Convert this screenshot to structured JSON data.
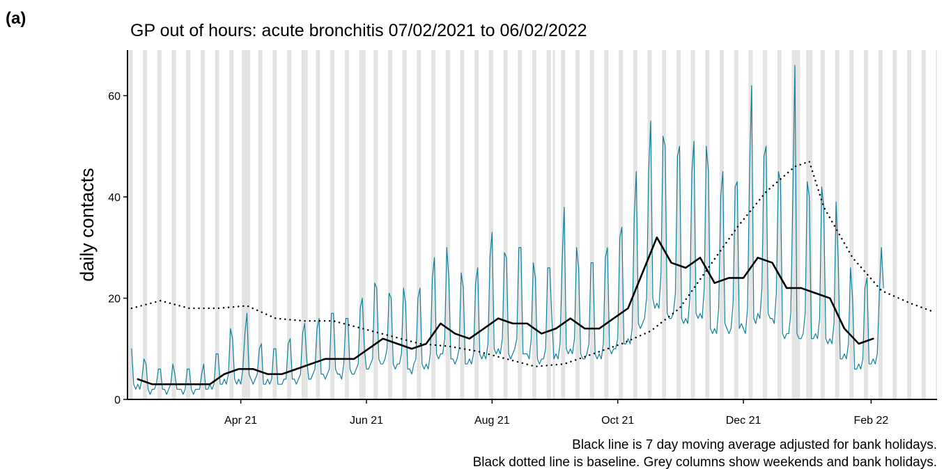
{
  "panel_label": "(a)",
  "chart_data": {
    "type": "line",
    "title": "GP out of hours: acute bronchitis 07/02/2021 to 06/02/2022",
    "y_label": "daily contacts",
    "notes": [
      "Black line is 7 day moving average adjusted for bank holidays.",
      "Black dotted line is baseline. Grey columns show weekends and bank holidays."
    ],
    "xlim": [
      -2,
      391
    ],
    "xticks": [
      {
        "value": 53,
        "label": "Apr 21"
      },
      {
        "value": 114,
        "label": "Jun 21"
      },
      {
        "value": 175,
        "label": "Aug 21"
      },
      {
        "value": 236,
        "label": "Oct 21"
      },
      {
        "value": 297,
        "label": "Dec 21"
      },
      {
        "value": 359,
        "label": "Feb 22"
      }
    ],
    "ylim": [
      0,
      69
    ],
    "yticks": [
      0,
      20,
      40,
      60
    ],
    "shade_weekends": true,
    "shade_color": "#e3e3e3",
    "bank_holidays": [
      54,
      57,
      85,
      113,
      205,
      323,
      324,
      330
    ],
    "series": [
      {
        "name": "daily contacts",
        "color": "#0f8199",
        "width": 1.2,
        "x": [
          0,
          1,
          2,
          3,
          4,
          5,
          6,
          7,
          8,
          9,
          10,
          11,
          12,
          13,
          14,
          15,
          16,
          17,
          18,
          19,
          20,
          21,
          22,
          23,
          24,
          25,
          26,
          27,
          28,
          29,
          30,
          31,
          32,
          33,
          34,
          35,
          36,
          37,
          38,
          39,
          40,
          41,
          42,
          43,
          44,
          45,
          46,
          47,
          48,
          49,
          50,
          51,
          52,
          53,
          54,
          55,
          56,
          57,
          58,
          59,
          60,
          61,
          62,
          63,
          64,
          65,
          66,
          67,
          68,
          69,
          70,
          71,
          72,
          73,
          74,
          75,
          76,
          77,
          78,
          79,
          80,
          81,
          82,
          83,
          84,
          85,
          86,
          87,
          88,
          89,
          90,
          91,
          92,
          93,
          94,
          95,
          96,
          97,
          98,
          99,
          100,
          101,
          102,
          103,
          104,
          105,
          106,
          107,
          108,
          109,
          110,
          111,
          112,
          113,
          114,
          115,
          116,
          117,
          118,
          119,
          120,
          121,
          122,
          123,
          124,
          125,
          126,
          127,
          128,
          129,
          130,
          131,
          132,
          133,
          134,
          135,
          136,
          137,
          138,
          139,
          140,
          141,
          142,
          143,
          144,
          145,
          146,
          147,
          148,
          149,
          150,
          151,
          152,
          153,
          154,
          155,
          156,
          157,
          158,
          159,
          160,
          161,
          162,
          163,
          164,
          165,
          166,
          167,
          168,
          169,
          170,
          171,
          172,
          173,
          174,
          175,
          176,
          177,
          178,
          179,
          180,
          181,
          182,
          183,
          184,
          185,
          186,
          187,
          188,
          189,
          190,
          191,
          192,
          193,
          194,
          195,
          196,
          197,
          198,
          199,
          200,
          201,
          202,
          203,
          204,
          205,
          206,
          207,
          208,
          209,
          210,
          211,
          212,
          213,
          214,
          215,
          216,
          217,
          218,
          219,
          220,
          221,
          222,
          223,
          224,
          225,
          226,
          227,
          228,
          229,
          230,
          231,
          232,
          233,
          234,
          235,
          236,
          237,
          238,
          239,
          240,
          241,
          242,
          243,
          244,
          245,
          246,
          247,
          248,
          249,
          250,
          251,
          252,
          253,
          254,
          255,
          256,
          257,
          258,
          259,
          260,
          261,
          262,
          263,
          264,
          265,
          266,
          267,
          268,
          269,
          270,
          271,
          272,
          273,
          274,
          275,
          276,
          277,
          278,
          279,
          280,
          281,
          282,
          283,
          284,
          285,
          286,
          287,
          288,
          289,
          290,
          291,
          292,
          293,
          294,
          295,
          296,
          297,
          298,
          299,
          300,
          301,
          302,
          303,
          304,
          305,
          306,
          307,
          308,
          309,
          310,
          311,
          312,
          313,
          314,
          315,
          316,
          317,
          318,
          319,
          320,
          321,
          322,
          323,
          324,
          325,
          326,
          327,
          328,
          329,
          330,
          331,
          332,
          333,
          334,
          335,
          336,
          337,
          338,
          339,
          340,
          341,
          342,
          343,
          344,
          345,
          346,
          347,
          348,
          349,
          350,
          351,
          352,
          353,
          354,
          355,
          356,
          357,
          358,
          359,
          360,
          361,
          362,
          363,
          364,
          365
        ],
        "values": [
          10,
          3,
          2,
          3,
          2,
          4,
          8,
          7,
          2,
          1,
          2,
          2,
          3,
          6,
          6,
          2,
          2,
          1,
          2,
          3,
          7,
          5,
          2,
          2,
          2,
          1,
          2,
          6,
          6,
          2,
          1,
          2,
          2,
          2,
          5,
          7,
          2,
          2,
          3,
          2,
          3,
          9,
          9,
          3,
          3,
          4,
          3,
          5,
          14,
          12,
          4,
          3,
          4,
          3,
          6,
          13,
          17,
          5,
          4,
          3,
          4,
          5,
          10,
          11,
          3,
          3,
          4,
          3,
          4,
          10,
          10,
          3,
          3,
          3,
          4,
          4,
          11,
          12,
          4,
          4,
          3,
          4,
          5,
          13,
          15,
          8,
          4,
          4,
          5,
          6,
          14,
          16,
          5,
          5,
          4,
          5,
          6,
          17,
          17,
          6,
          5,
          5,
          4,
          7,
          16,
          16,
          6,
          5,
          5,
          6,
          7,
          18,
          20,
          10,
          6,
          6,
          7,
          8,
          23,
          22,
          8,
          7,
          7,
          8,
          10,
          21,
          20,
          7,
          6,
          7,
          7,
          9,
          22,
          19,
          6,
          6,
          5,
          7,
          8,
          20,
          22,
          7,
          6,
          7,
          6,
          9,
          24,
          28,
          9,
          8,
          9,
          9,
          12,
          30,
          24,
          8,
          8,
          7,
          8,
          10,
          25,
          22,
          7,
          7,
          8,
          7,
          9,
          23,
          26,
          9,
          8,
          9,
          8,
          11,
          28,
          33,
          10,
          9,
          10,
          9,
          12,
          29,
          28,
          9,
          8,
          9,
          10,
          12,
          30,
          30,
          9,
          9,
          9,
          8,
          12,
          27,
          24,
          8,
          7,
          8,
          8,
          10,
          26,
          26,
          16,
          8,
          9,
          8,
          11,
          27,
          38,
          10,
          9,
          10,
          9,
          12,
          30,
          26,
          9,
          8,
          8,
          9,
          11,
          27,
          27,
          9,
          8,
          9,
          8,
          11,
          28,
          30,
          10,
          9,
          10,
          10,
          12,
          32,
          34,
          11,
          11,
          12,
          11,
          14,
          36,
          45,
          15,
          14,
          15,
          16,
          20,
          45,
          55,
          20,
          18,
          19,
          18,
          25,
          52,
          50,
          17,
          16,
          16,
          17,
          21,
          48,
          50,
          16,
          15,
          16,
          15,
          20,
          45,
          51,
          17,
          16,
          17,
          16,
          22,
          50,
          45,
          14,
          13,
          14,
          13,
          18,
          40,
          45,
          15,
          14,
          13,
          14,
          19,
          42,
          43,
          14,
          15,
          14,
          13,
          18,
          45,
          62,
          16,
          15,
          17,
          16,
          22,
          48,
          50,
          17,
          16,
          16,
          15,
          21,
          45,
          43,
          13,
          12,
          13,
          13,
          17,
          40,
          66,
          13,
          12,
          12,
          13,
          17,
          43,
          40,
          12,
          12,
          13,
          12,
          16,
          42,
          38,
          12,
          11,
          12,
          11,
          15,
          39,
          28,
          8,
          8,
          9,
          8,
          11,
          26,
          20,
          6,
          6,
          7,
          6,
          8,
          22,
          24,
          7,
          7,
          8,
          7,
          9,
          21,
          30,
          22
        ]
      },
      {
        "name": "7 day moving average",
        "color": "#000000",
        "width": 2.6,
        "x": [
          3,
          10,
          17,
          24,
          31,
          38,
          45,
          52,
          59,
          66,
          73,
          80,
          87,
          94,
          101,
          108,
          115,
          122,
          129,
          136,
          143,
          150,
          157,
          164,
          171,
          178,
          185,
          192,
          199,
          206,
          213,
          220,
          227,
          234,
          241,
          248,
          255,
          262,
          269,
          276,
          283,
          290,
          297,
          304,
          311,
          318,
          325,
          332,
          339,
          346,
          353,
          360
        ],
        "values": [
          4,
          3,
          3,
          3,
          3,
          3,
          5,
          6,
          6,
          5,
          5,
          6,
          7,
          8,
          8,
          8,
          10,
          12,
          11,
          10,
          11,
          15,
          13,
          12,
          14,
          16,
          15,
          15,
          13,
          14,
          16,
          14,
          14,
          16,
          18,
          25,
          32,
          27,
          26,
          28,
          23,
          24,
          24,
          28,
          27,
          22,
          22,
          21,
          20,
          14,
          11,
          12
        ]
      },
      {
        "name": "baseline",
        "color": "#000000",
        "width": 2.4,
        "dash": true,
        "x": [
          0,
          14,
          28,
          42,
          56,
          70,
          84,
          98,
          112,
          126,
          140,
          154,
          168,
          182,
          196,
          210,
          224,
          238,
          252,
          266,
          280,
          294,
          308,
          322,
          329,
          336,
          350,
          364,
          378,
          388
        ],
        "values": [
          18,
          19.5,
          18,
          18,
          18.5,
          16,
          15.5,
          15.5,
          14,
          12.5,
          11,
          10.5,
          9.5,
          8,
          6.5,
          7,
          9,
          11,
          13.5,
          18,
          26,
          34,
          41,
          46,
          47,
          38,
          28,
          21.5,
          19,
          17.5
        ]
      }
    ]
  }
}
